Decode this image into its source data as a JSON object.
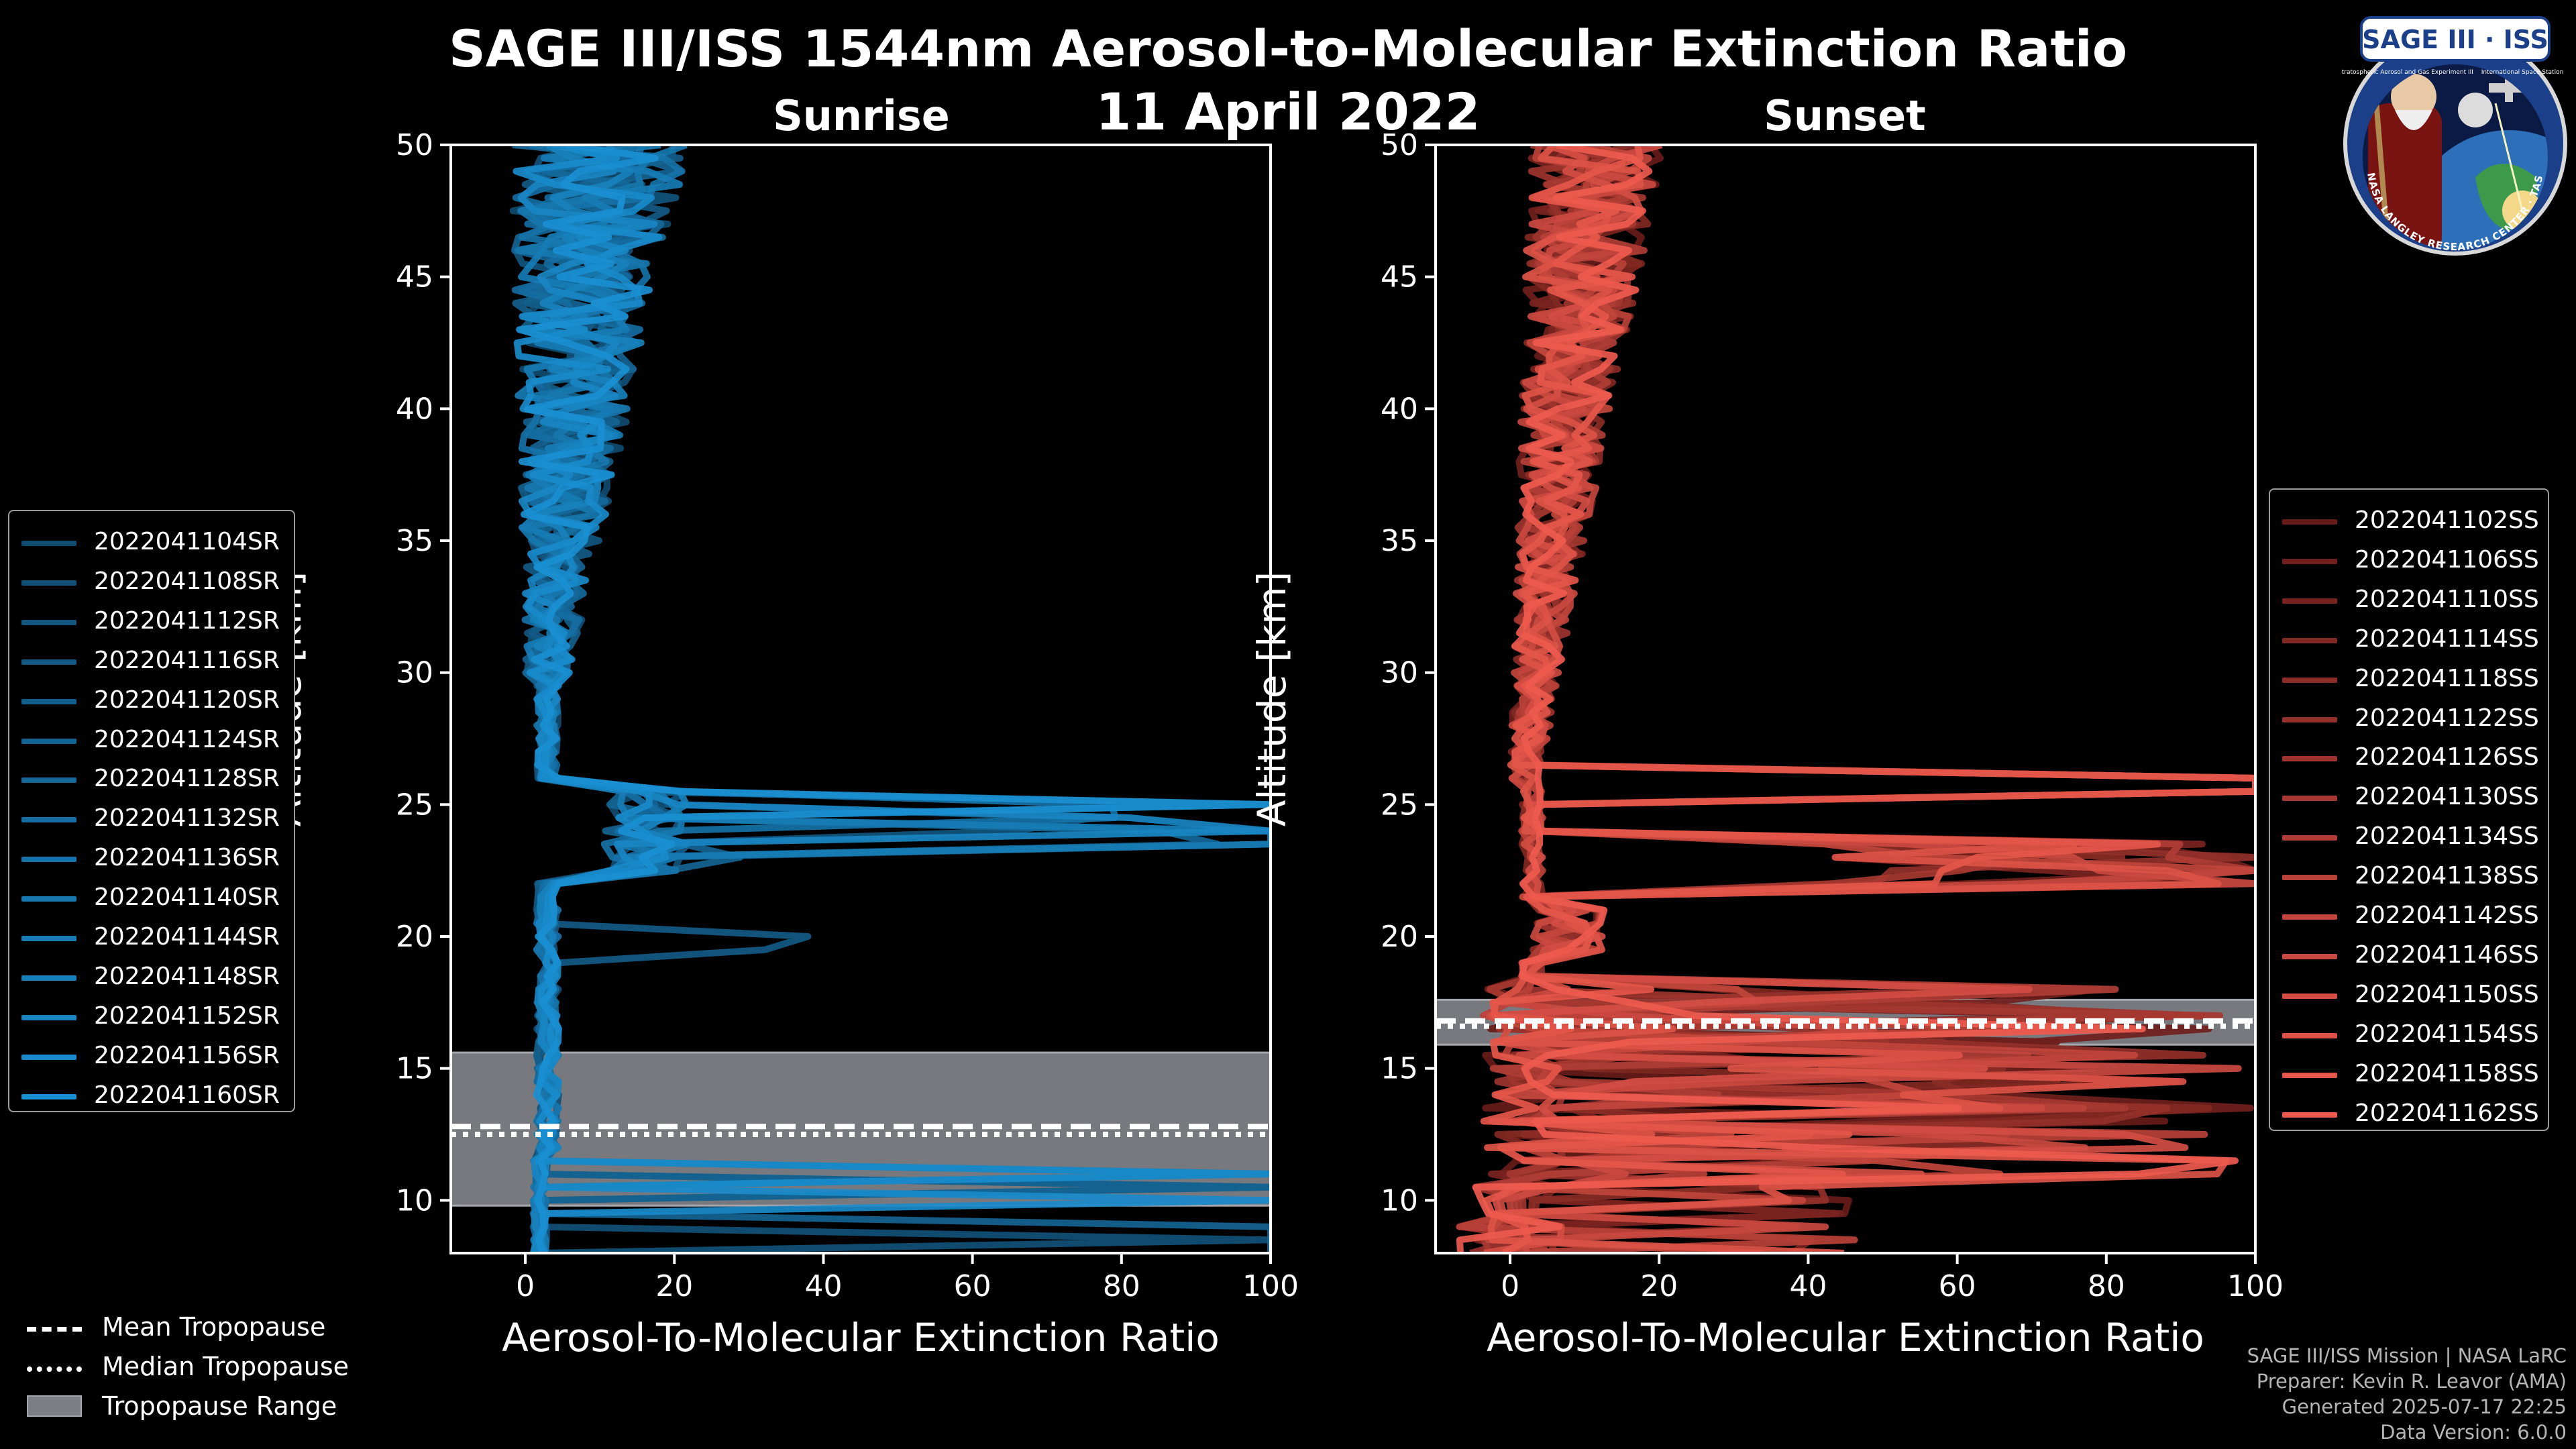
{
  "title": "SAGE III/ISS 1544nm Aerosol-to-Molecular Extinction Ratio",
  "date": "11 April 2022",
  "logo": {
    "name": "SAGE III · ISS",
    "subtitle_left": "Stratospheric Aerosol and Gas Experiment III",
    "subtitle_right": "International Space Station",
    "ring_text": "BALL · NASA LANGLEY RESEARCH CENTER · TAS-I · ESA"
  },
  "footer": [
    "SAGE III/ISS Mission | NASA LaRC",
    "Preparer: Kevin R. Leavor (AMA)",
    "Generated 2025-07-17 22:25",
    "Data Version: 6.0.0"
  ],
  "bottom_legend": [
    {
      "label": "Mean Tropopause",
      "style": "dashed"
    },
    {
      "label": "Median Tropopause",
      "style": "dotted"
    },
    {
      "label": "Tropopause Range",
      "style": "patch"
    }
  ],
  "chart_data": [
    {
      "type": "line",
      "panel": "sunrise",
      "title": "Sunrise",
      "xlabel": "Aerosol-To-Molecular Extinction Ratio",
      "ylabel": "Altitude [km]",
      "xlim": [
        -10,
        100
      ],
      "ylim": [
        8,
        50
      ],
      "xticks": [
        0,
        20,
        40,
        60,
        80,
        100
      ],
      "yticks": [
        10,
        15,
        20,
        25,
        30,
        35,
        40,
        45,
        50
      ],
      "color_dark": "#0d3550",
      "color_light": "#1a8fd1",
      "tropopause": {
        "mean": 12.8,
        "median": 12.5,
        "min": 9.8,
        "max": 15.6
      },
      "profile_shape": {
        "peak_altitude": 24.1,
        "peak_value": 100,
        "secondary_peak_altitude": 19.7,
        "secondary_peak_value": 38
      },
      "series": [
        {
          "name": "2022041104SR"
        },
        {
          "name": "2022041108SR"
        },
        {
          "name": "2022041112SR"
        },
        {
          "name": "2022041116SR"
        },
        {
          "name": "2022041120SR"
        },
        {
          "name": "2022041124SR"
        },
        {
          "name": "2022041128SR"
        },
        {
          "name": "2022041132SR"
        },
        {
          "name": "2022041136SR"
        },
        {
          "name": "2022041140SR"
        },
        {
          "name": "2022041144SR"
        },
        {
          "name": "2022041148SR"
        },
        {
          "name": "2022041152SR"
        },
        {
          "name": "2022041156SR"
        },
        {
          "name": "2022041160SR"
        }
      ]
    },
    {
      "type": "line",
      "panel": "sunset",
      "title": "Sunset",
      "xlabel": "Aerosol-To-Molecular Extinction Ratio",
      "ylabel": "Altitude [km]",
      "xlim": [
        -10,
        100
      ],
      "ylim": [
        8,
        50
      ],
      "xticks": [
        0,
        20,
        40,
        60,
        80,
        100
      ],
      "yticks": [
        10,
        15,
        20,
        25,
        30,
        35,
        40,
        45,
        50
      ],
      "color_dark": "#3a0606",
      "color_light": "#ee5a4e",
      "tropopause": {
        "mean": 16.8,
        "median": 16.6,
        "min": 15.9,
        "max": 17.6
      },
      "profile_shape": {
        "peak_altitude": 25.5,
        "peak_value": 100,
        "secondary_peak_altitude": 23.0,
        "secondary_peak_value": 100
      },
      "series": [
        {
          "name": "2022041102SS"
        },
        {
          "name": "2022041106SS"
        },
        {
          "name": "2022041110SS"
        },
        {
          "name": "2022041114SS"
        },
        {
          "name": "2022041118SS"
        },
        {
          "name": "2022041122SS"
        },
        {
          "name": "2022041126SS"
        },
        {
          "name": "2022041130SS"
        },
        {
          "name": "2022041134SS"
        },
        {
          "name": "2022041138SS"
        },
        {
          "name": "2022041142SS"
        },
        {
          "name": "2022041146SS"
        },
        {
          "name": "2022041150SS"
        },
        {
          "name": "2022041154SS"
        },
        {
          "name": "2022041158SS"
        },
        {
          "name": "2022041162SS"
        }
      ]
    }
  ]
}
